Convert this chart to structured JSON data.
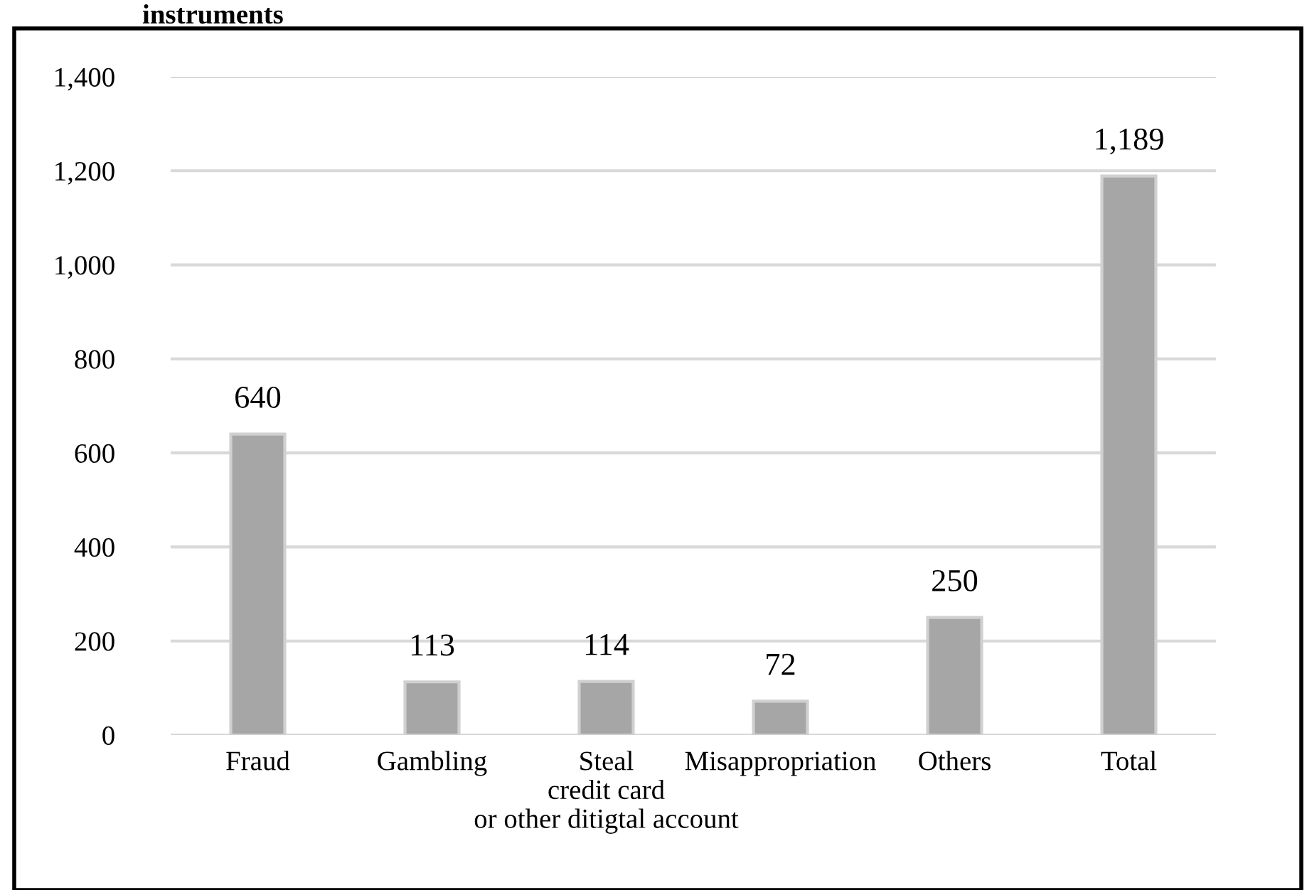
{
  "chart_data": {
    "type": "bar",
    "title": "instruments",
    "categories": [
      "Fraud",
      "Gambling",
      "Steal\ncredit card\nor other ditigtal account",
      "Misappropriation",
      "Others",
      "Total"
    ],
    "values": [
      640,
      113,
      114,
      72,
      250,
      1189
    ],
    "color": "#a6a6a6",
    "ylim": [
      0,
      1400
    ],
    "yticks": [
      {
        "value": 0,
        "label": "0"
      },
      {
        "value": 200,
        "label": "200"
      },
      {
        "value": 400,
        "label": "400"
      },
      {
        "value": 600,
        "label": "600"
      },
      {
        "value": 800,
        "label": "800"
      },
      {
        "value": 1000,
        "label": "1,000"
      },
      {
        "value": 1200,
        "label": "1,200"
      },
      {
        "value": 1400,
        "label": "1,400"
      }
    ],
    "value_labels": [
      "640",
      "113",
      "114",
      "72",
      "250",
      "1,189"
    ],
    "grid": "y",
    "legend": false
  }
}
